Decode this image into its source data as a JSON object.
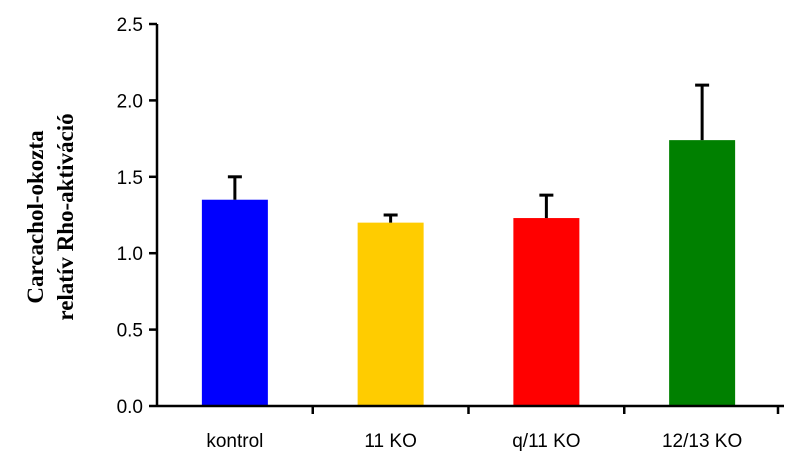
{
  "chart_data": {
    "type": "bar",
    "categories": [
      "kontrol",
      "11 KO",
      "q/11 KO",
      "12/13 KO"
    ],
    "values": [
      1.35,
      1.2,
      1.23,
      1.74
    ],
    "errors": [
      0.15,
      0.05,
      0.15,
      0.36
    ],
    "colors": [
      "#0000ff",
      "#ffcc00",
      "#ff0000",
      "#008000"
    ],
    "ylabel_lines": [
      "Carcachol-okozta",
      "relatív Rho-aktiváció"
    ],
    "ylim": [
      0,
      2.5
    ],
    "yticks": [
      "0.0",
      "0.5",
      "1.0",
      "1.5",
      "2.0",
      "2.5"
    ],
    "grid": false,
    "legend": "none"
  }
}
